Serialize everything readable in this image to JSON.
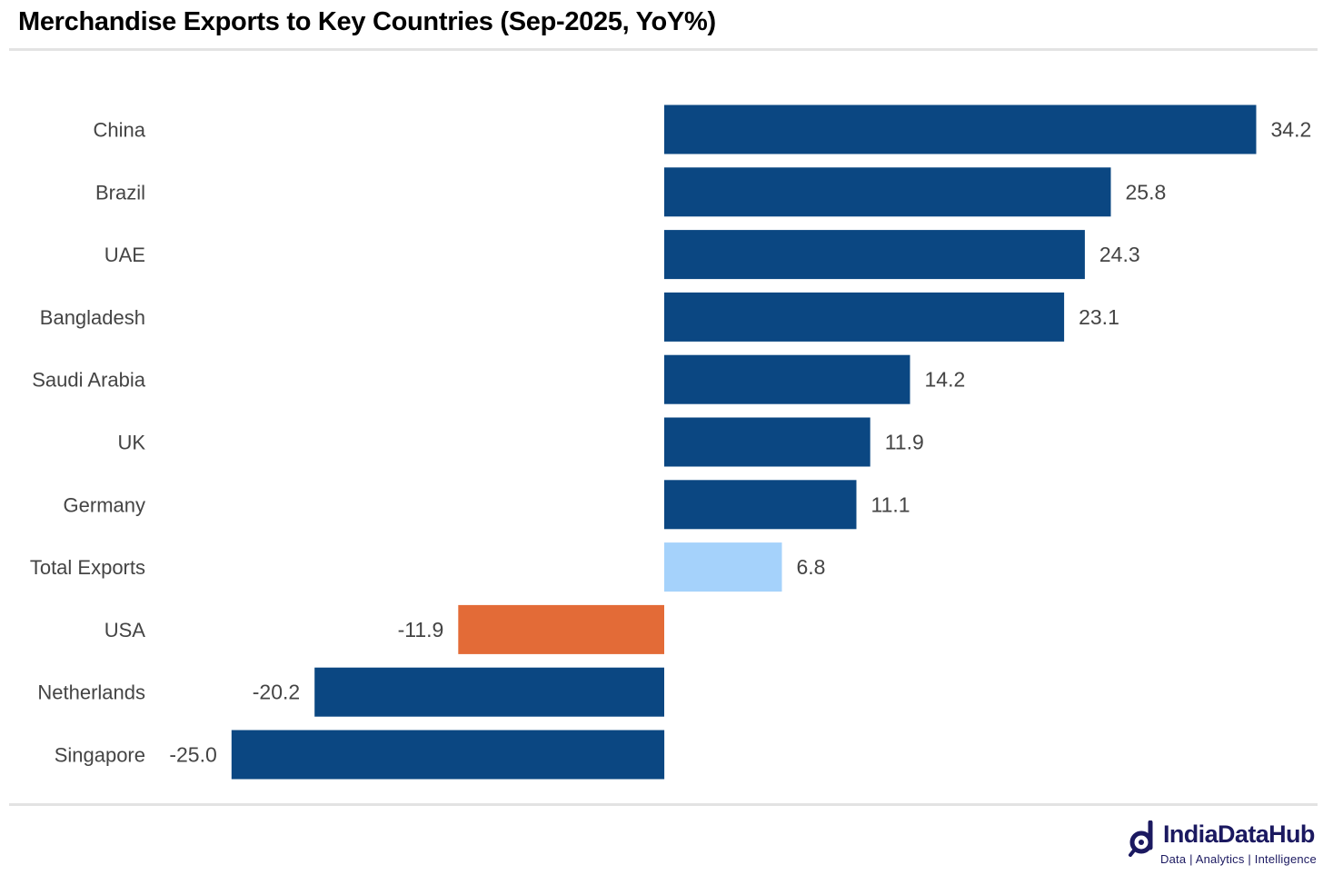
{
  "chart_data": {
    "type": "bar",
    "orientation": "horizontal",
    "title": "Merchandise Exports to Key Countries (Sep-2025, YoY%)",
    "categories": [
      "China",
      "Brazil",
      "UAE",
      "Bangladesh",
      "Saudi Arabia",
      "UK",
      "Germany",
      "Total Exports",
      "USA",
      "Netherlands",
      "Singapore"
    ],
    "values": [
      34.2,
      25.8,
      24.3,
      23.1,
      14.2,
      11.9,
      11.1,
      6.8,
      -11.9,
      -20.2,
      -25.0
    ],
    "value_labels": [
      "34.2",
      "25.8",
      "24.3",
      "23.1",
      "14.2",
      "11.9",
      "11.1",
      "6.8",
      "-11.9",
      "-20.2",
      "-25.0"
    ],
    "bar_colors": [
      "#0b4782",
      "#0b4782",
      "#0b4782",
      "#0b4782",
      "#0b4782",
      "#0b4782",
      "#0b4782",
      "#a5d2fb",
      "#e36b37",
      "#0b4782",
      "#0b4782"
    ],
    "xlim": [
      -27,
      36
    ],
    "xlabel": "",
    "ylabel": "",
    "grid": false,
    "legend": "none"
  },
  "brand": {
    "name": "IndiaDataHub",
    "tagline": "Data | Analytics | Intelligence",
    "color": "#1b1960"
  }
}
